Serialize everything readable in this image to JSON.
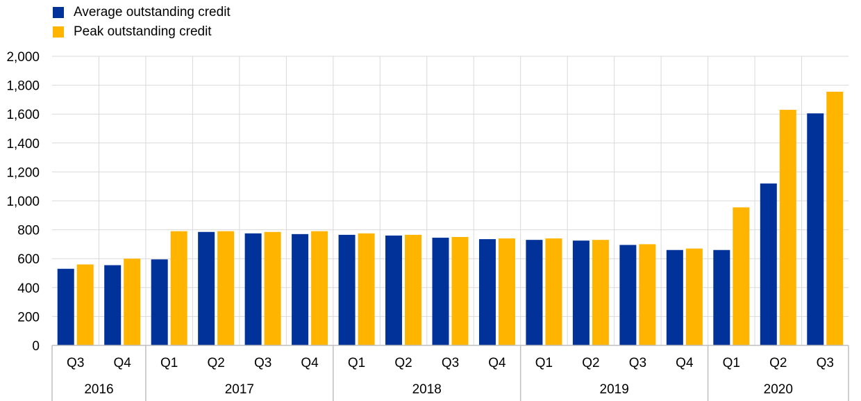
{
  "colors": {
    "avg": "#003299",
    "peak": "#FFB400",
    "grid": "#d9d9d9",
    "axis": "#bfbfbf"
  },
  "chart_data": {
    "type": "bar",
    "legend_position": "top-left",
    "grid": true,
    "ylim": [
      0,
      2000
    ],
    "yticks": [
      0,
      200,
      400,
      600,
      800,
      1000,
      1200,
      1400,
      1600,
      1800,
      2000
    ],
    "ytick_labels": [
      "0",
      "200",
      "400",
      "600",
      "800",
      "1,000",
      "1,200",
      "1,400",
      "1,600",
      "1,800",
      "2,000"
    ],
    "categories": [
      "Q3",
      "Q4",
      "Q1",
      "Q2",
      "Q3",
      "Q4",
      "Q1",
      "Q2",
      "Q3",
      "Q4",
      "Q1",
      "Q2",
      "Q3",
      "Q4",
      "Q1",
      "Q2",
      "Q3"
    ],
    "year_groups": [
      {
        "label": "2016",
        "count": 2
      },
      {
        "label": "2017",
        "count": 4
      },
      {
        "label": "2018",
        "count": 4
      },
      {
        "label": "2019",
        "count": 4
      },
      {
        "label": "2020",
        "count": 3
      }
    ],
    "series": [
      {
        "name": "Average outstanding credit",
        "key": "avg",
        "values": [
          530,
          555,
          595,
          785,
          775,
          770,
          765,
          760,
          745,
          735,
          730,
          725,
          695,
          660,
          660,
          1120,
          1605
        ]
      },
      {
        "name": "Peak outstanding credit",
        "key": "peak",
        "values": [
          560,
          600,
          790,
          790,
          785,
          790,
          775,
          765,
          750,
          740,
          740,
          730,
          700,
          670,
          955,
          1630,
          1755
        ]
      }
    ]
  }
}
